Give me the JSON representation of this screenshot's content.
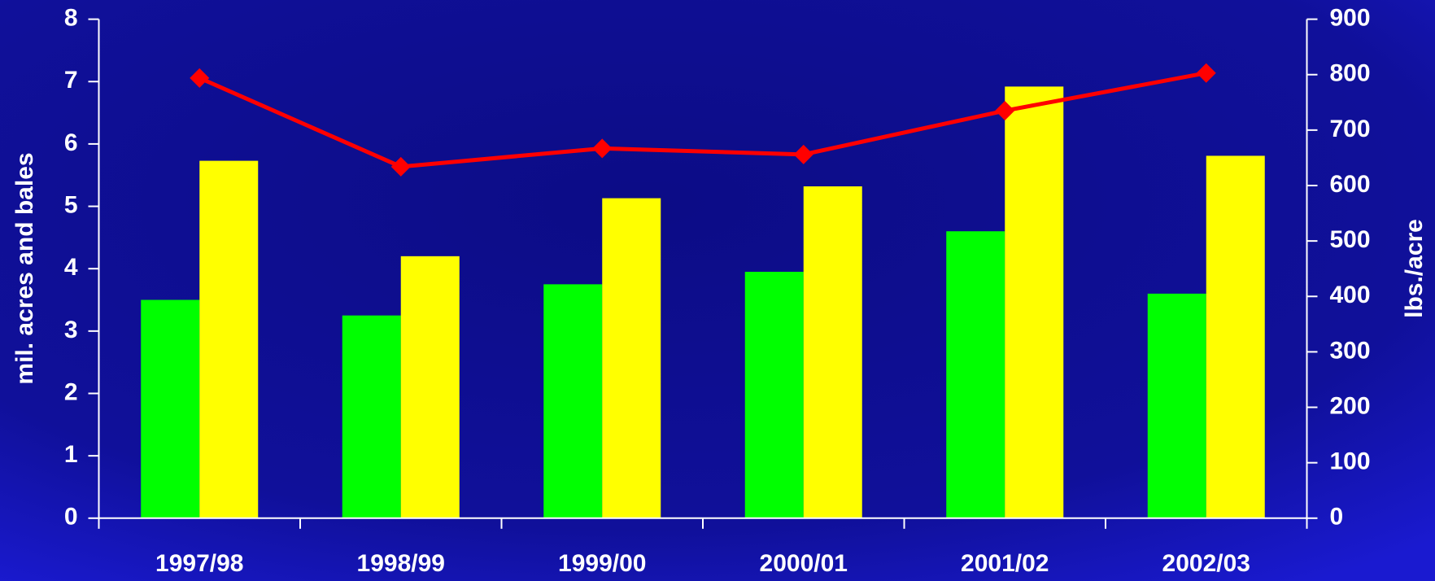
{
  "chart_data": {
    "type": "bar",
    "y_label": "mil. acres and bales",
    "y2_label": "lbs./acre",
    "categories": [
      "1997/98",
      "1998/99",
      "1999/00",
      "2000/01",
      "2001/02",
      "2002/03"
    ],
    "series": [
      {
        "color": "#00ff00",
        "values": [
          3.5,
          3.25,
          3.75,
          3.95,
          4.6,
          3.6
        ]
      },
      {
        "color": "#ffff00",
        "values": [
          5.73,
          4.2,
          5.13,
          5.32,
          6.92,
          5.81
        ]
      },
      {
        "type": "line",
        "axis": "y2",
        "color": "#ff0000",
        "values": [
          794,
          634,
          667,
          656,
          735,
          803
        ]
      }
    ],
    "ylim": [
      0,
      8
    ],
    "yticks": [
      0,
      1,
      2,
      3,
      4,
      5,
      6,
      7,
      8
    ],
    "y2lim": [
      0,
      900
    ],
    "y2ticks": [
      0,
      100,
      200,
      300,
      400,
      500,
      600,
      700,
      800,
      900
    ]
  }
}
